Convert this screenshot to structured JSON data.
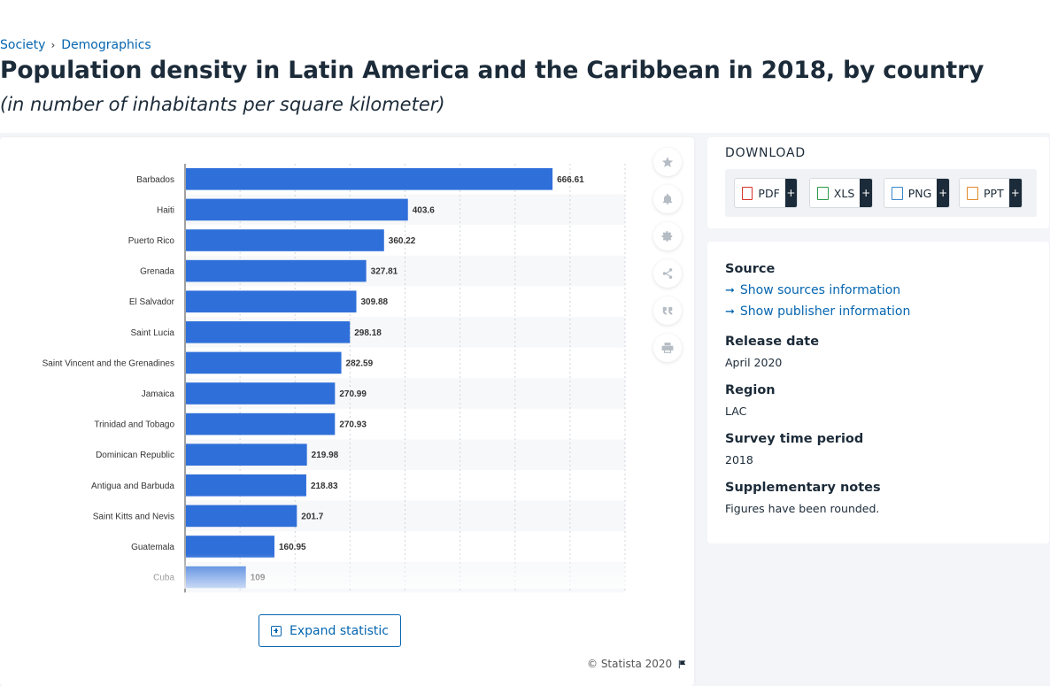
{
  "breadcrumb": {
    "items": [
      "Society",
      "Demographics"
    ],
    "separator": "›"
  },
  "page": {
    "title": "Population density in Latin America and the Caribbean in 2018, by country",
    "subtitle": "(in number of inhabitants per square kilometer)"
  },
  "chart_data": {
    "type": "bar",
    "orientation": "horizontal",
    "categories": [
      "Barbados",
      "Haiti",
      "Puerto Rico",
      "Grenada",
      "El Salvador",
      "Saint Lucia",
      "Saint Vincent and the Grenadines",
      "Jamaica",
      "Trinidad and Tobago",
      "Dominican Republic",
      "Antigua and Barbuda",
      "Saint Kitts and Nevis",
      "Guatemala",
      "Cuba"
    ],
    "values": [
      666.61,
      403.6,
      360.22,
      327.81,
      309.88,
      298.18,
      282.59,
      270.99,
      270.93,
      219.98,
      218.83,
      201.7,
      160.95,
      109
    ],
    "value_labels": [
      "666.61",
      "403.6",
      "360.22",
      "327.81",
      "309.88",
      "298.18",
      "282.59",
      "270.99",
      "270.93",
      "219.98",
      "218.83",
      "201.7",
      "160.95",
      "109"
    ],
    "xlim": [
      0,
      800
    ],
    "grid": true,
    "bar_color": "#2f6fd9",
    "title": "",
    "xlabel": "",
    "ylabel": ""
  },
  "tools": {
    "icons": [
      "star-icon",
      "bell-icon",
      "gear-icon",
      "share-icon",
      "quote-icon",
      "print-icon"
    ]
  },
  "expand": {
    "label": "Expand statistic"
  },
  "copyright": {
    "text": "© Statista 2020"
  },
  "download": {
    "title": "DOWNLOAD",
    "buttons": [
      {
        "label": "PDF",
        "color": "#d9342b",
        "plus": "+"
      },
      {
        "label": "XLS",
        "color": "#2e9a4a",
        "plus": "+"
      },
      {
        "label": "PNG",
        "color": "#3a87c9",
        "plus": "+"
      },
      {
        "label": "PPT",
        "color": "#e08a2e",
        "plus": "+"
      }
    ]
  },
  "info": {
    "source_heading": "Source",
    "show_sources": "Show sources information",
    "show_publisher": "Show publisher information",
    "release_heading": "Release date",
    "release_value": "April 2020",
    "region_heading": "Region",
    "region_value": "LAC",
    "survey_heading": "Survey time period",
    "survey_value": "2018",
    "notes_heading": "Supplementary notes",
    "notes_value": "Figures have been rounded."
  }
}
